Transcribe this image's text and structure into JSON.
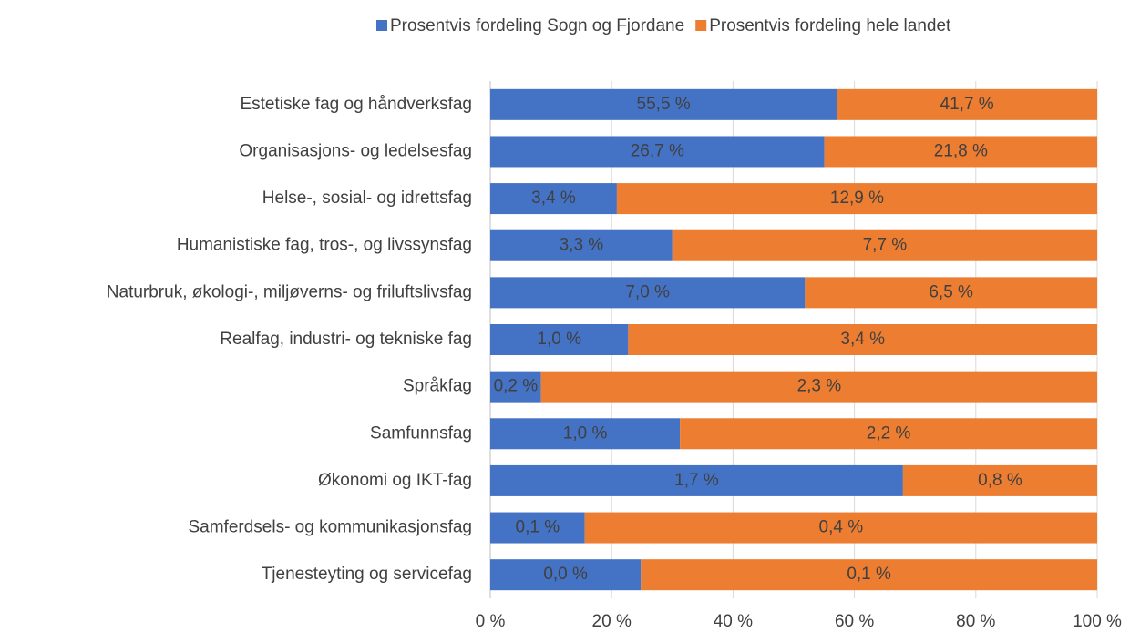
{
  "chart_data": {
    "type": "bar",
    "orientation": "horizontal",
    "stacked": "percent",
    "categories": [
      "Estetiske fag og håndverksfag",
      "Organisasjons- og ledelsesfag",
      "Helse-, sosial- og idrettsfag",
      "Humanistiske fag, tros-, og livssynsfag",
      "Naturbruk, økologi-, miljøverns- og friluftslivsfag",
      "Realfag, industri- og tekniske fag",
      "Språkfag",
      "Samfunnsfag",
      "Økonomi og IKT-fag",
      "Samferdsels- og kommunikasjonsfag",
      "Tjenesteyting og servicefag"
    ],
    "series": [
      {
        "name": "Prosentvis fordeling Sogn og Fjordane",
        "color": "#4472c4",
        "values": [
          55.5,
          26.7,
          3.4,
          3.3,
          7.0,
          1.0,
          0.21,
          1.0,
          1.7,
          0.07,
          0.033
        ],
        "value_labels": [
          "55,5 %",
          "26,7 %",
          "3,4 %",
          "3,3 %",
          "7,0 %",
          "1,0 %",
          "0,2 %",
          "1,0 %",
          "1,7 %",
          "0,1 %",
          "0,0 %"
        ]
      },
      {
        "name": "Prosentvis fordeling hele landet",
        "color": "#ed7d31",
        "values": [
          41.7,
          21.8,
          12.9,
          7.7,
          6.5,
          3.4,
          2.3,
          2.2,
          0.8,
          0.38,
          0.1
        ],
        "value_labels": [
          "41,7 %",
          "21,8 %",
          "12,9 %",
          "7,7 %",
          "6,5 %",
          "3,4 %",
          "2,3 %",
          "2,2 %",
          "0,8 %",
          "0,4 %",
          "0,1 %"
        ]
      }
    ],
    "xlim": [
      0,
      100
    ],
    "xticks": [
      {
        "value": 0,
        "label": "0 %"
      },
      {
        "value": 20,
        "label": "20 %"
      },
      {
        "value": 40,
        "label": "40 %"
      },
      {
        "value": 60,
        "label": "60 %"
      },
      {
        "value": 80,
        "label": "80 %"
      },
      {
        "value": 100,
        "label": "100 %"
      }
    ],
    "grid": true,
    "legend": "top"
  }
}
